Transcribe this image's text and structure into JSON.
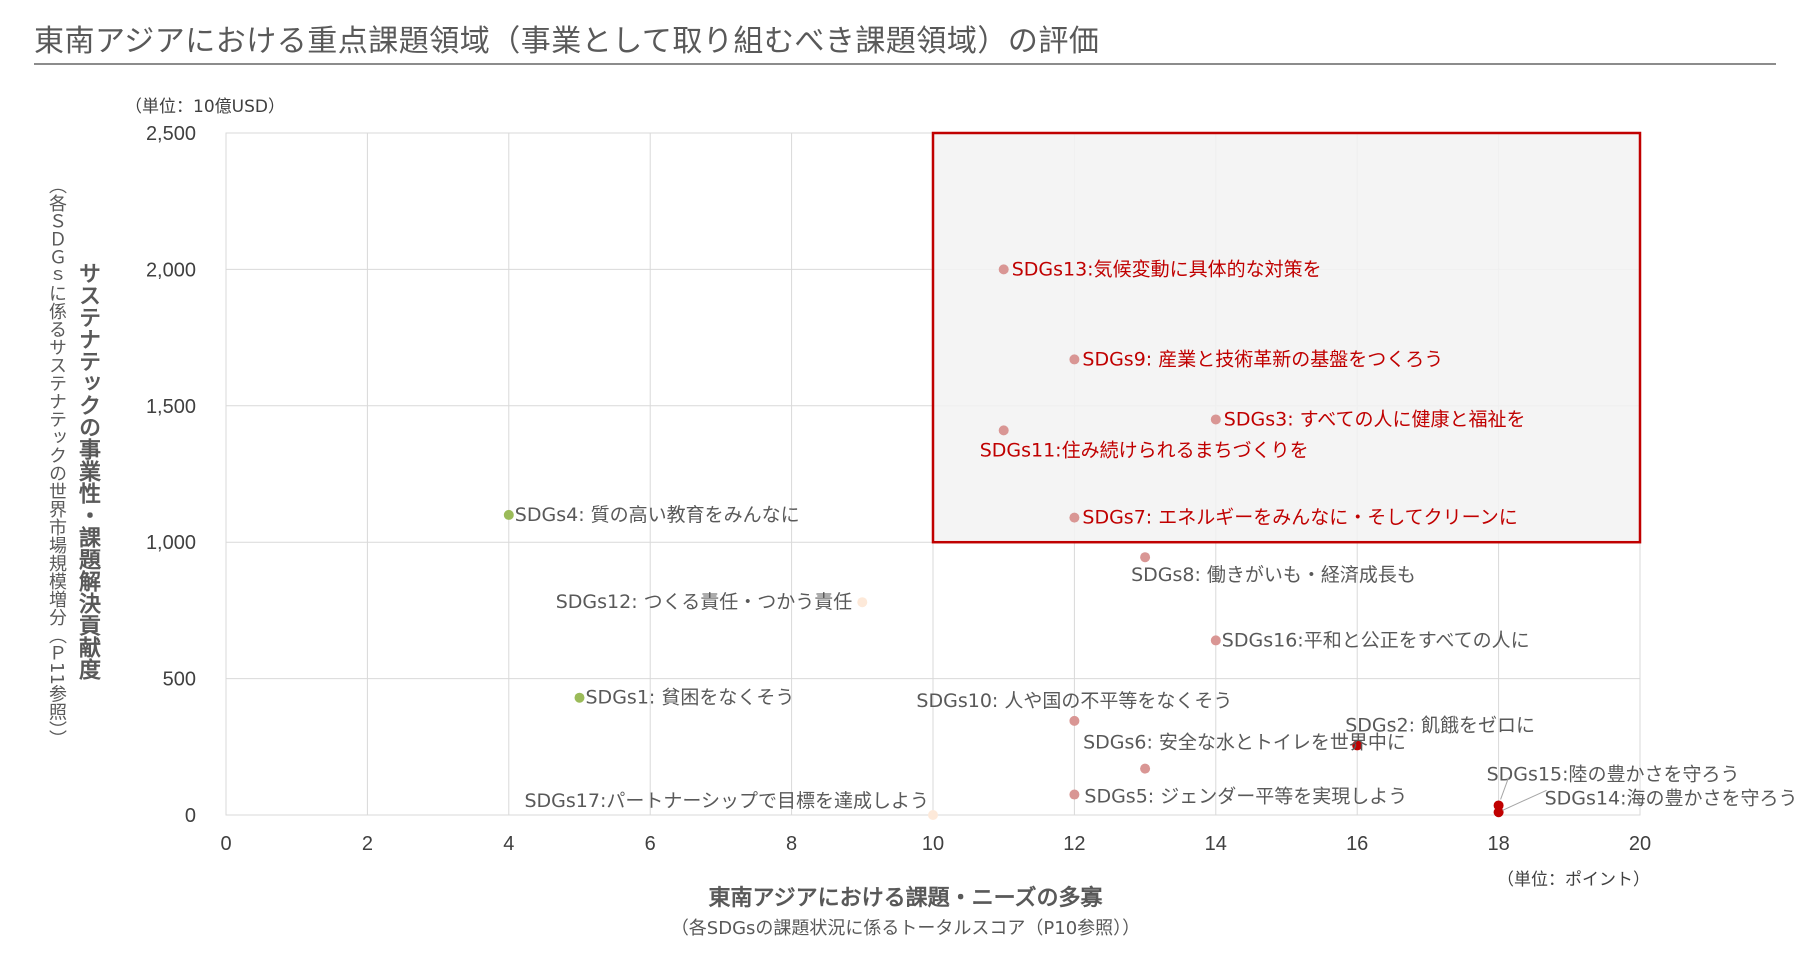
{
  "title": "東南アジアにおける重点課題領域（事業として取り組むべき課題領域）の評価",
  "chart_data": {
    "type": "scatter",
    "y_unit": "（単位：10億USD）",
    "x_unit": "（単位：ポイント）",
    "xlabel": "東南アジアにおける課題・ニーズの多寡",
    "xlabel_sub": "（各SDGsの課題状況に係るトータルスコア（P10参照））",
    "ylabel": "サステナテックの事業性・課題解決貢献度",
    "ylabel_sub": "（各ＳＤＧｓに係るサステナテックの世界市場規模増分（Ｐ11参照））",
    "xlim": [
      0,
      20
    ],
    "ylim": [
      0,
      2500
    ],
    "x_ticks": [
      0,
      2,
      4,
      6,
      8,
      10,
      12,
      14,
      16,
      18,
      20
    ],
    "y_ticks": [
      0,
      500,
      1000,
      1500,
      2000,
      2500
    ],
    "y_tick_labels": [
      "0",
      "500",
      "1,000",
      "1,500",
      "2,000",
      "2,500"
    ],
    "grid": true,
    "highlight_region": {
      "x_range": [
        10,
        20
      ],
      "y_range": [
        1000,
        2500
      ],
      "fill": "#f2f2f2",
      "border": "#c00000"
    },
    "points": [
      {
        "label": "SDGs13:気候変動に具体的な対策を",
        "x": 11,
        "y": 2000,
        "color": "#d99694",
        "label_color": "#c00000"
      },
      {
        "label": "SDGs9: 産業と技術革新の基盤をつくろう",
        "x": 12,
        "y": 1670,
        "color": "#d99694",
        "label_color": "#c00000"
      },
      {
        "label": "SDGs3: すべての人に健康と福祉を",
        "x": 14,
        "y": 1450,
        "color": "#d99694",
        "label_color": "#c00000"
      },
      {
        "label": "SDGs11:住み続けられるまちづくりを",
        "x": 11,
        "y": 1410,
        "color": "#d99694",
        "label_color": "#c00000"
      },
      {
        "label": "SDGs7: エネルギーをみんなに・そしてクリーンに",
        "x": 12,
        "y": 1090,
        "color": "#d99694",
        "label_color": "#c00000"
      },
      {
        "label": "SDGs4: 質の高い教育をみんなに",
        "x": 4,
        "y": 1100,
        "color": "#9bbb59",
        "label_color": "#595959"
      },
      {
        "label": "SDGs8: 働きがいも・経済成長も",
        "x": 13,
        "y": 945,
        "color": "#d99694",
        "label_color": "#595959"
      },
      {
        "label": "SDGs12: つくる責任・つかう責任",
        "x": 9,
        "y": 780,
        "color": "#fde9d9",
        "label_color": "#595959"
      },
      {
        "label": "SDGs16:平和と公正をすべての人に",
        "x": 14,
        "y": 640,
        "color": "#d99694",
        "label_color": "#595959"
      },
      {
        "label": "SDGs1: 貧困をなくそう",
        "x": 5,
        "y": 430,
        "color": "#9bbb59",
        "label_color": "#595959"
      },
      {
        "label": "SDGs10: 人や国の不平等をなくそう",
        "x": 12,
        "y": 345,
        "color": "#d99694",
        "label_color": "#595959"
      },
      {
        "label": "SDGs2: 飢餓をゼロに",
        "x": 16,
        "y": 255,
        "color": "#c00000",
        "label_color": "#595959"
      },
      {
        "label": "SDGs6: 安全な水とトイレを世界中に",
        "x": 13,
        "y": 170,
        "color": "#d99694",
        "label_color": "#595959"
      },
      {
        "label": "SDGs5: ジェンダー平等を実現しよう",
        "x": 12,
        "y": 75,
        "color": "#d99694",
        "label_color": "#595959"
      },
      {
        "label": "SDGs17:パートナーシップで目標を達成しよう",
        "x": 10,
        "y": 0,
        "color": "#fde9d9",
        "label_color": "#595959"
      },
      {
        "label": "SDGs15:陸の豊かさを守ろう",
        "x": 18,
        "y": 35,
        "color": "#c00000",
        "label_color": "#595959"
      },
      {
        "label": "SDGs14:海の豊かさを守ろう",
        "x": 18,
        "y": 10,
        "color": "#c00000",
        "label_color": "#595959"
      }
    ]
  }
}
